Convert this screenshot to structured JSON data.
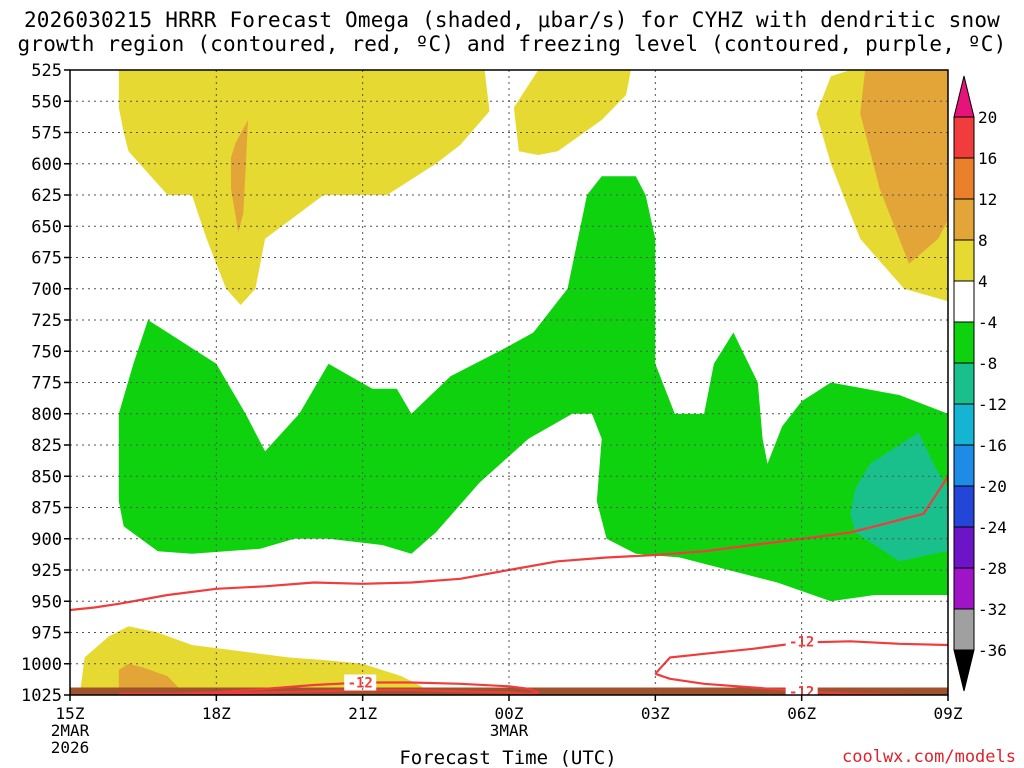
{
  "title_line1": "2026030215 HRRR Forecast Omega (shaded, μbar/s) for CYHZ with dendritic snow",
  "title_line2": "growth region (contoured, red, ºC) and freezing level (contoured, purple, ºC)",
  "credit": "coolwx.com/models",
  "chart_data": {
    "type": "contour",
    "title": "2026030215 HRRR Forecast Omega (shaded, μbar/s) for CYHZ with dendritic snow growth region (contoured, red, ºC) and freezing level (contoured, purple, ºC)",
    "xlabel": "Forecast Time (UTC)",
    "ylabel": "",
    "x_range_hours": [
      0,
      18
    ],
    "y_range_hpa": [
      1025,
      525
    ],
    "y_scale": "pressure (reversed)",
    "grid": true,
    "y_ticks": [
      525,
      550,
      575,
      600,
      625,
      650,
      675,
      700,
      725,
      750,
      775,
      800,
      825,
      850,
      875,
      900,
      925,
      950,
      975,
      1000,
      1025
    ],
    "x_ticks": [
      {
        "hour": 0,
        "label": "15Z",
        "sub": [
          "2MAR",
          "2026"
        ]
      },
      {
        "hour": 3,
        "label": "18Z",
        "sub": []
      },
      {
        "hour": 6,
        "label": "21Z",
        "sub": []
      },
      {
        "hour": 9,
        "label": "00Z",
        "sub": [
          "3MAR"
        ]
      },
      {
        "hour": 12,
        "label": "03Z",
        "sub": []
      },
      {
        "hour": 15,
        "label": "06Z",
        "sub": []
      },
      {
        "hour": 18,
        "label": "09Z",
        "sub": []
      }
    ],
    "colorbar": {
      "labels": [
        "20",
        "16",
        "12",
        "8",
        "4",
        "-4",
        "-8",
        "-12",
        "-16",
        "-20",
        "-24",
        "-28",
        "-32",
        "-36"
      ],
      "bins": [
        {
          "range": [
            16,
            20
          ],
          "color": "#f03c3c"
        },
        {
          "range": [
            12,
            16
          ],
          "color": "#ea7f2c"
        },
        {
          "range": [
            8,
            12
          ],
          "color": "#e3a537"
        },
        {
          "range": [
            4,
            8
          ],
          "color": "#e6da32"
        },
        {
          "range": [
            -4,
            4
          ],
          "color": "#ffffff"
        },
        {
          "range": [
            -8,
            -4
          ],
          "color": "#0fd20f"
        },
        {
          "range": [
            -12,
            -8
          ],
          "color": "#19c08c"
        },
        {
          "range": [
            -16,
            -12
          ],
          "color": "#14b4d2"
        },
        {
          "range": [
            -20,
            -16
          ],
          "color": "#1e8ce6"
        },
        {
          "range": [
            -24,
            -20
          ],
          "color": "#2346d8"
        },
        {
          "range": [
            -28,
            -24
          ],
          "color": "#6e14c8"
        },
        {
          "range": [
            -32,
            -28
          ],
          "color": "#a014c8"
        },
        {
          "range": [
            -36,
            -32
          ],
          "color": "#a0a0a0"
        }
      ],
      "over_color": "#e6147a",
      "under_color": "#000000"
    },
    "terrain_color": "#a0522d",
    "contour_color": "#f03c3c",
    "shaded_regions": [
      {
        "name": "omega 4 to 8 (upper, left)",
        "color": "#e6da32",
        "points": [
          [
            1.0,
            525
          ],
          [
            8.5,
            525
          ],
          [
            8.6,
            558
          ],
          [
            8.0,
            585
          ],
          [
            7.5,
            600
          ],
          [
            6.5,
            625
          ],
          [
            5.9,
            625
          ],
          [
            5.2,
            625
          ],
          [
            4.0,
            660
          ],
          [
            3.8,
            700
          ],
          [
            3.5,
            713
          ],
          [
            3.2,
            700
          ],
          [
            2.8,
            660
          ],
          [
            2.5,
            625
          ],
          [
            2.0,
            625
          ],
          [
            1.2,
            590
          ],
          [
            1.1,
            575
          ],
          [
            1.0,
            555
          ]
        ]
      },
      {
        "name": "omega 8 to 12 (upper, left)",
        "color": "#e3a537",
        "points": [
          [
            3.4,
            583
          ],
          [
            3.65,
            565
          ],
          [
            3.6,
            605
          ],
          [
            3.55,
            640
          ],
          [
            3.45,
            655
          ],
          [
            3.3,
            620
          ],
          [
            3.3,
            595
          ]
        ]
      },
      {
        "name": "omega 4 to 8 (upper, middle)",
        "color": "#e6da32",
        "points": [
          [
            9.6,
            525
          ],
          [
            11.5,
            525
          ],
          [
            11.4,
            545
          ],
          [
            10.9,
            565
          ],
          [
            10.0,
            590
          ],
          [
            9.6,
            593
          ],
          [
            9.2,
            590
          ],
          [
            9.1,
            555
          ]
        ]
      },
      {
        "name": "omega 4 to 8 (upper, right)",
        "color": "#e6da32",
        "points": [
          [
            16.0,
            525
          ],
          [
            18.0,
            525
          ],
          [
            18.0,
            710
          ],
          [
            17.1,
            700
          ],
          [
            16.2,
            660
          ],
          [
            15.6,
            600
          ],
          [
            15.3,
            560
          ],
          [
            15.6,
            530
          ]
        ]
      },
      {
        "name": "omega 8 to 12 (upper, right)",
        "color": "#e3a537",
        "points": [
          [
            16.3,
            525
          ],
          [
            18.0,
            525
          ],
          [
            18.0,
            645
          ],
          [
            17.8,
            660
          ],
          [
            17.2,
            680
          ],
          [
            16.9,
            650
          ],
          [
            16.6,
            620
          ],
          [
            16.4,
            590
          ],
          [
            16.2,
            560
          ]
        ]
      },
      {
        "name": "omega -4 to -8 (middle)",
        "color": "#0fd20f",
        "points": [
          [
            1.0,
            800
          ],
          [
            1.3,
            760
          ],
          [
            1.6,
            725
          ],
          [
            2.0,
            735
          ],
          [
            3.0,
            760
          ],
          [
            3.6,
            800
          ],
          [
            4.0,
            830
          ],
          [
            4.7,
            800
          ],
          [
            5.3,
            760
          ],
          [
            6.2,
            780
          ],
          [
            6.7,
            780
          ],
          [
            7.0,
            800
          ],
          [
            7.8,
            770
          ],
          [
            8.8,
            750
          ],
          [
            9.5,
            735
          ],
          [
            10.2,
            700
          ],
          [
            10.6,
            625
          ],
          [
            10.9,
            610
          ],
          [
            11.6,
            610
          ],
          [
            11.8,
            625
          ],
          [
            12.0,
            660
          ],
          [
            12.0,
            760
          ],
          [
            12.4,
            800
          ],
          [
            13.0,
            800
          ],
          [
            13.2,
            760
          ],
          [
            13.6,
            735
          ],
          [
            14.1,
            775
          ],
          [
            14.2,
            820
          ],
          [
            14.3,
            840
          ],
          [
            14.6,
            810
          ],
          [
            15.0,
            790
          ],
          [
            15.6,
            775
          ],
          [
            16.3,
            780
          ],
          [
            17.0,
            785
          ],
          [
            18.0,
            800
          ],
          [
            18.0,
            945
          ],
          [
            16.5,
            945
          ],
          [
            15.6,
            950
          ],
          [
            14.5,
            935
          ],
          [
            12.5,
            915
          ],
          [
            11.6,
            912
          ],
          [
            11.0,
            900
          ],
          [
            10.8,
            870
          ],
          [
            10.9,
            820
          ],
          [
            10.7,
            800
          ],
          [
            10.3,
            800
          ],
          [
            9.4,
            820
          ],
          [
            8.4,
            855
          ],
          [
            7.5,
            895
          ],
          [
            7.0,
            912
          ],
          [
            6.4,
            905
          ],
          [
            5.3,
            900
          ],
          [
            4.6,
            900
          ],
          [
            3.9,
            908
          ],
          [
            3.2,
            910
          ],
          [
            2.5,
            912
          ],
          [
            1.8,
            910
          ],
          [
            1.1,
            890
          ],
          [
            1.0,
            870
          ]
        ]
      },
      {
        "name": "omega -8 to -12 (right)",
        "color": "#19c08c",
        "points": [
          [
            16.4,
            840
          ],
          [
            17.0,
            825
          ],
          [
            17.4,
            815
          ],
          [
            17.7,
            840
          ],
          [
            18.0,
            860
          ],
          [
            18.0,
            910
          ],
          [
            17.7,
            912
          ],
          [
            17.0,
            918
          ],
          [
            16.5,
            905
          ],
          [
            16.1,
            895
          ],
          [
            16.0,
            880
          ],
          [
            16.1,
            860
          ]
        ]
      },
      {
        "name": "omega 4 to 8 (lower, left)",
        "color": "#e6da32",
        "points": [
          [
            0.2,
            1025
          ],
          [
            0.3,
            995
          ],
          [
            0.8,
            978
          ],
          [
            1.2,
            970
          ],
          [
            1.8,
            975
          ],
          [
            2.5,
            985
          ],
          [
            3.5,
            990
          ],
          [
            4.5,
            995
          ],
          [
            5.2,
            997
          ],
          [
            6.0,
            1000
          ],
          [
            6.8,
            1010
          ],
          [
            7.2,
            1018
          ],
          [
            7.4,
            1025
          ]
        ]
      },
      {
        "name": "omega 8 to 12 (lower, left)",
        "color": "#e3a537",
        "points": [
          [
            1.0,
            1025
          ],
          [
            1.0,
            1005
          ],
          [
            1.2,
            1000
          ],
          [
            1.5,
            1003
          ],
          [
            2.0,
            1010
          ],
          [
            2.2,
            1018
          ],
          [
            2.3,
            1025
          ]
        ]
      }
    ],
    "terrain_top_hpa": 1019,
    "contours": [
      {
        "label": "-12",
        "points": [
          [
            0,
            957
          ],
          [
            0.5,
            955
          ],
          [
            1.0,
            952
          ],
          [
            2.0,
            945
          ],
          [
            3.0,
            940
          ],
          [
            4.0,
            938
          ],
          [
            5.0,
            935
          ],
          [
            6.0,
            936
          ],
          [
            7.0,
            935
          ],
          [
            8.0,
            932
          ],
          [
            9.0,
            925
          ],
          [
            10.0,
            918
          ],
          [
            11.0,
            915
          ],
          [
            12.0,
            913
          ],
          [
            13.0,
            910
          ],
          [
            14.0,
            905
          ],
          [
            15.0,
            900
          ],
          [
            16.0,
            895
          ],
          [
            16.5,
            890
          ],
          [
            17.0,
            885
          ],
          [
            17.5,
            880
          ],
          [
            18.0,
            850
          ]
        ]
      },
      {
        "label": "-12",
        "labeled_at": {
          "hour": 6.0,
          "hpa": 1015
        },
        "points": [
          [
            2.0,
            1024
          ],
          [
            3.0,
            1023
          ],
          [
            4.0,
            1020
          ],
          [
            5.0,
            1017
          ],
          [
            6.0,
            1015
          ],
          [
            7.0,
            1015
          ],
          [
            8.0,
            1016
          ],
          [
            9.0,
            1018
          ],
          [
            9.4,
            1020
          ],
          [
            9.6,
            1023
          ],
          [
            9.4,
            1024
          ],
          [
            9.0,
            1023
          ],
          [
            8.0,
            1022
          ],
          [
            7.0,
            1021
          ],
          [
            6.0,
            1021
          ],
          [
            5.0,
            1022
          ],
          [
            4.0,
            1023
          ],
          [
            3.0,
            1024
          ],
          [
            2.0,
            1024
          ],
          [
            1.0,
            1024
          ]
        ]
      },
      {
        "label": "-12",
        "labeled_at": {
          "hour": 15.0,
          "hpa": 982
        },
        "points": [
          [
            12.0,
            1008
          ],
          [
            12.3,
            995
          ],
          [
            13.0,
            992
          ],
          [
            14.0,
            988
          ],
          [
            15.0,
            983
          ],
          [
            16.0,
            982
          ],
          [
            17.0,
            984
          ],
          [
            18.0,
            985
          ]
        ]
      },
      {
        "label": "-12",
        "labeled_at": {
          "hour": 15.0,
          "hpa": 1022
        },
        "points": [
          [
            12.0,
            1008
          ],
          [
            12.3,
            1012
          ],
          [
            13.0,
            1016
          ],
          [
            14.0,
            1019
          ],
          [
            15.0,
            1022
          ],
          [
            16.0,
            1024
          ],
          [
            17.0,
            1025
          ],
          [
            18.0,
            1026
          ]
        ]
      }
    ],
    "contour_labels": [
      {
        "text": "-12",
        "hour": 5.95,
        "hpa": 1015
      },
      {
        "text": "-12",
        "hour": 15.0,
        "hpa": 982
      },
      {
        "text": "-12",
        "hour": 15.0,
        "hpa": 1022
      }
    ]
  }
}
